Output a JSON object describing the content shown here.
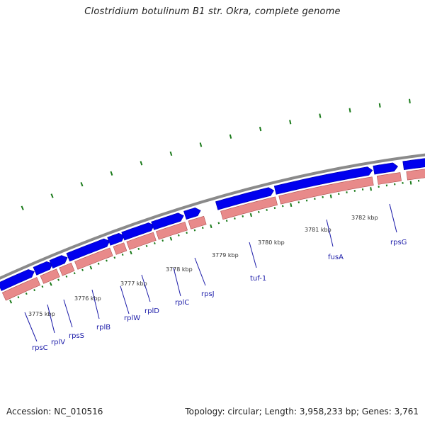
{
  "title": "Clostridium botulinum B1 str. Okra, complete genome",
  "footer": {
    "accession": "Accession: NC_010516",
    "topology": "Topology: circular; Length: 3,958,233 bp; Genes: 3,761"
  },
  "colors": {
    "backbone": "#8a8a8a",
    "forward_gene": "#0000ee",
    "reverse_gene": "#e88a8a",
    "tick": "#1a7a1a",
    "gene_label": "#1a1aa8"
  },
  "kbp_labels": [
    "3775 kbp",
    "3776 kbp",
    "3777 kbp",
    "3778 kbp",
    "3779 kbp",
    "3780 kbp",
    "3781 kbp",
    "3782 kbp"
  ],
  "gene_labels": [
    "rpsC",
    "rplV",
    "rpsS",
    "rplB",
    "rplW",
    "rplD",
    "rplC",
    "rpsJ",
    "tuf-1",
    "fusA",
    "rpsG"
  ]
}
